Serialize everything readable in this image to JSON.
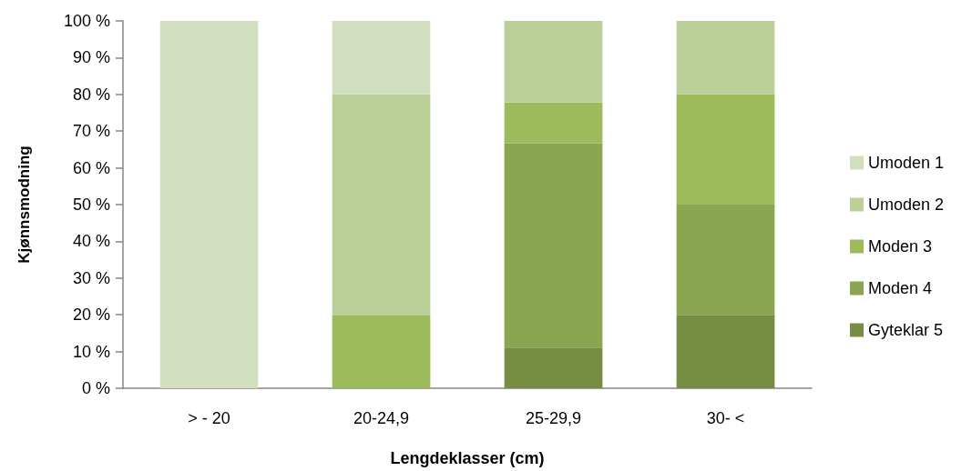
{
  "chart_data": {
    "type": "bar",
    "stacked": true,
    "xlabel": "Lengdeklasser (cm)",
    "ylabel": "Kjønnsmodning",
    "categories": [
      "> - 20",
      "20-24,9",
      "25-29,9",
      "30- <"
    ],
    "series": [
      {
        "name": "Gyteklar 5",
        "color": "#778d44",
        "values": [
          0,
          0,
          11.1,
          20
        ]
      },
      {
        "name": "Moden 4",
        "color": "#8aa650",
        "values": [
          0,
          0,
          55.6,
          30
        ]
      },
      {
        "name": "Moden 3",
        "color": "#9dbb5b",
        "values": [
          0,
          20,
          11.1,
          30
        ]
      },
      {
        "name": "Umoden 2",
        "color": "#bbcf98",
        "values": [
          0,
          60,
          22.2,
          20
        ]
      },
      {
        "name": "Umoden 1",
        "color": "#d1dfbf",
        "values": [
          100,
          20,
          0,
          0
        ]
      }
    ],
    "ylim": [
      0,
      100
    ],
    "yticks": [
      {
        "value": 0,
        "label": "0 %"
      },
      {
        "value": 10,
        "label": "10 %"
      },
      {
        "value": 20,
        "label": "20 %"
      },
      {
        "value": 30,
        "label": "30 %"
      },
      {
        "value": 40,
        "label": "40 %"
      },
      {
        "value": 50,
        "label": "50 %"
      },
      {
        "value": 60,
        "label": "60 %"
      },
      {
        "value": 70,
        "label": "70 %"
      },
      {
        "value": 80,
        "label": "80 %"
      },
      {
        "value": 90,
        "label": "90 %"
      },
      {
        "value": 100,
        "label": "100 %"
      }
    ],
    "grid": false,
    "legend": "right"
  }
}
